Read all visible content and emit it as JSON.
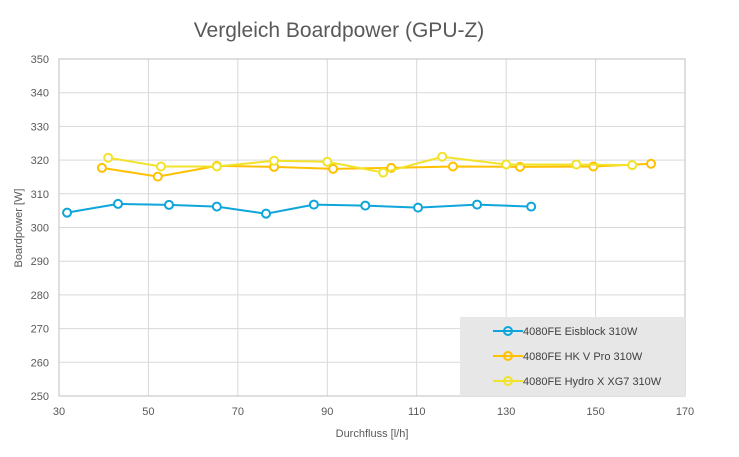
{
  "chart_data": {
    "type": "line",
    "title": "Vergleich Boardpower (GPU-Z)",
    "xlabel": "Durchfluss [l/h]",
    "ylabel": "Boardpower  [W]",
    "xlim": [
      30,
      170
    ],
    "ylim": [
      250,
      350
    ],
    "xticks": [
      30,
      50,
      70,
      90,
      110,
      130,
      150,
      170
    ],
    "yticks": [
      250,
      260,
      270,
      280,
      290,
      300,
      310,
      320,
      330,
      340,
      350
    ],
    "grid": true,
    "legend_position": "bottom-right",
    "series": [
      {
        "name": "4080FE Eisblock 310W",
        "color": "#0EA5DB",
        "x": [
          31.8,
          43.2,
          54.6,
          65.3,
          76.3,
          87.0,
          98.5,
          110.3,
          123.5,
          135.6
        ],
        "y": [
          304.4,
          307.0,
          306.7,
          306.2,
          304.1,
          306.8,
          306.5,
          305.9,
          306.8,
          306.2
        ]
      },
      {
        "name": "4080FE HK V Pro 310W",
        "color": "#FFC000",
        "x": [
          39.6,
          52.1,
          65.3,
          78.1,
          91.3,
          104.3,
          118.1,
          133.1,
          149.5,
          162.4
        ],
        "y": [
          317.7,
          315.1,
          318.3,
          318.0,
          317.4,
          317.7,
          318.1,
          318.0,
          318.1,
          318.9
        ]
      },
      {
        "name": "4080FE Hydro X XG7 310W",
        "color": "#F2E32A",
        "x": [
          41.0,
          52.8,
          65.3,
          78.1,
          90.0,
          102.5,
          115.7,
          130.0,
          145.7,
          158.2
        ],
        "y": [
          320.7,
          318.1,
          318.1,
          319.8,
          319.5,
          316.3,
          321.0,
          318.7,
          318.7,
          318.5
        ]
      }
    ]
  }
}
